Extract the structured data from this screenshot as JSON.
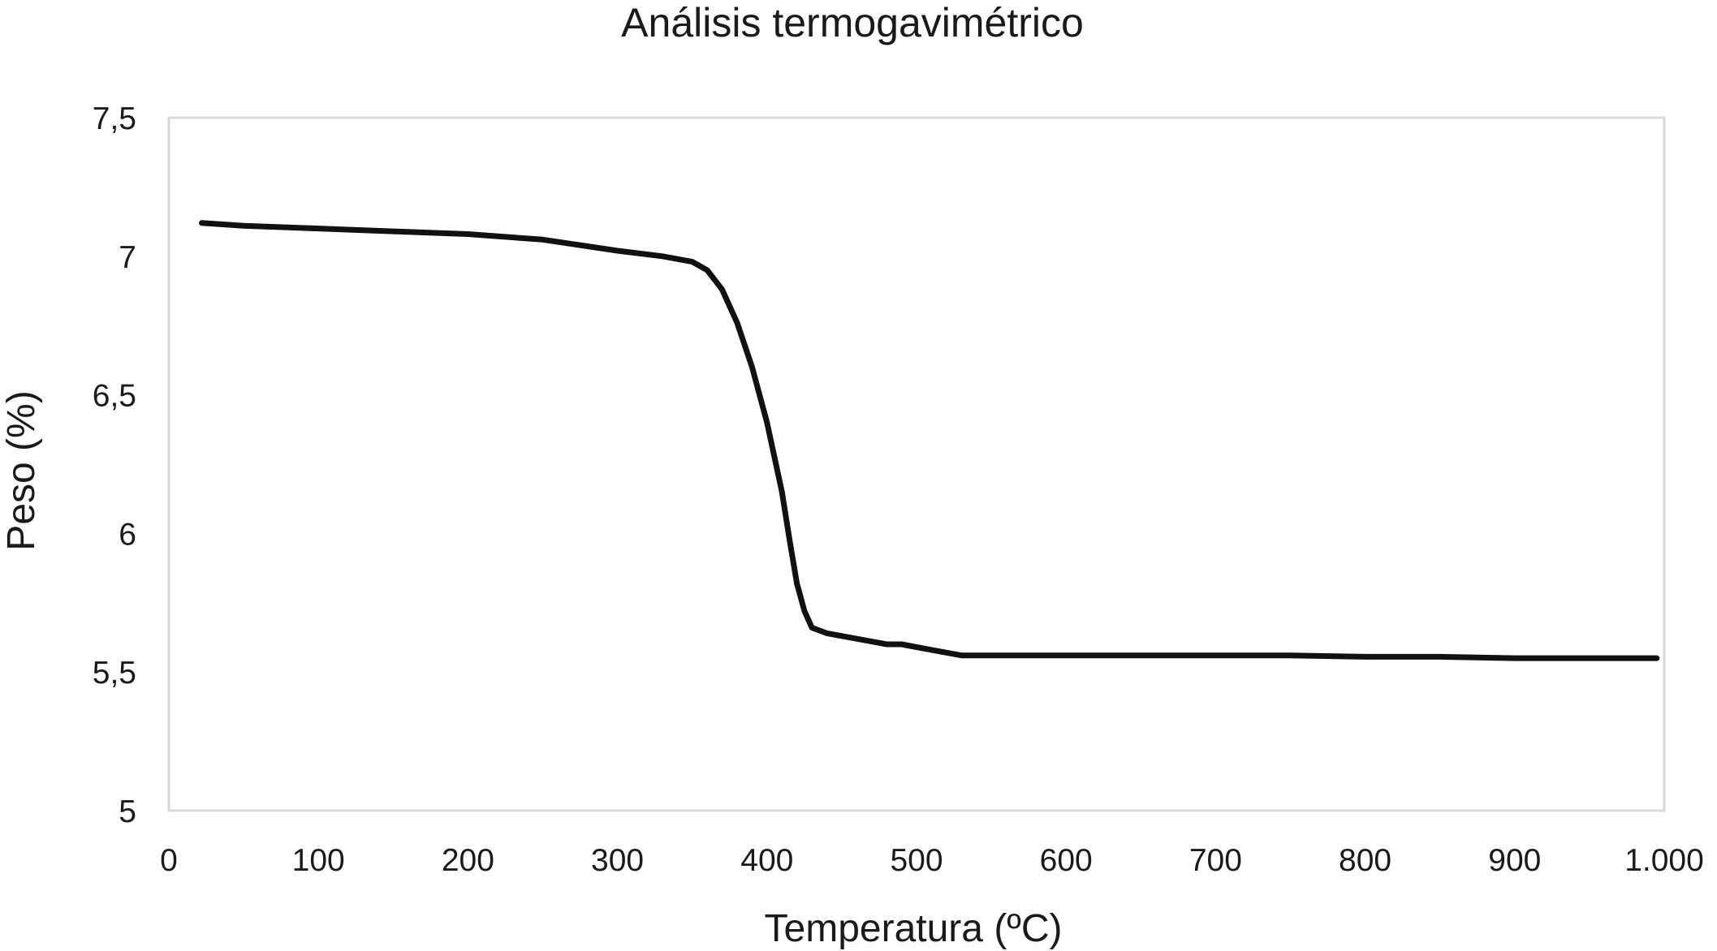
{
  "chart_data": {
    "type": "line",
    "title": "Análisis termogavimétrico",
    "xlabel": "Temperatura (ºC)",
    "ylabel": "Peso (%)",
    "xlim": [
      0,
      1000
    ],
    "ylim": [
      5,
      7.5
    ],
    "x_ticks": [
      0,
      100,
      200,
      300,
      400,
      500,
      600,
      700,
      800,
      900,
      1000
    ],
    "x_tick_labels": [
      "0",
      "100",
      "200",
      "300",
      "400",
      "500",
      "600",
      "700",
      "800",
      "900",
      "1.000"
    ],
    "y_ticks": [
      5,
      5.5,
      6,
      6.5,
      7,
      7.5
    ],
    "y_tick_labels": [
      "5",
      "5,5",
      "6",
      "6,5",
      "7",
      "7,5"
    ],
    "grid": false,
    "legend": "none",
    "line_color": "#111111",
    "x": [
      22,
      50,
      100,
      150,
      200,
      250,
      300,
      330,
      350,
      360,
      370,
      380,
      390,
      400,
      410,
      415,
      420,
      425,
      430,
      435,
      440,
      450,
      460,
      470,
      480,
      490,
      500,
      510,
      520,
      530,
      550,
      600,
      650,
      700,
      750,
      800,
      850,
      900,
      950,
      995
    ],
    "y": [
      7.12,
      7.11,
      7.1,
      7.09,
      7.08,
      7.06,
      7.02,
      7.0,
      6.98,
      6.95,
      6.88,
      6.76,
      6.6,
      6.4,
      6.15,
      5.98,
      5.82,
      5.72,
      5.66,
      5.65,
      5.64,
      5.63,
      5.62,
      5.61,
      5.6,
      5.6,
      5.59,
      5.58,
      5.57,
      5.56,
      5.56,
      5.56,
      5.56,
      5.56,
      5.56,
      5.555,
      5.555,
      5.55,
      5.55,
      5.55
    ]
  }
}
